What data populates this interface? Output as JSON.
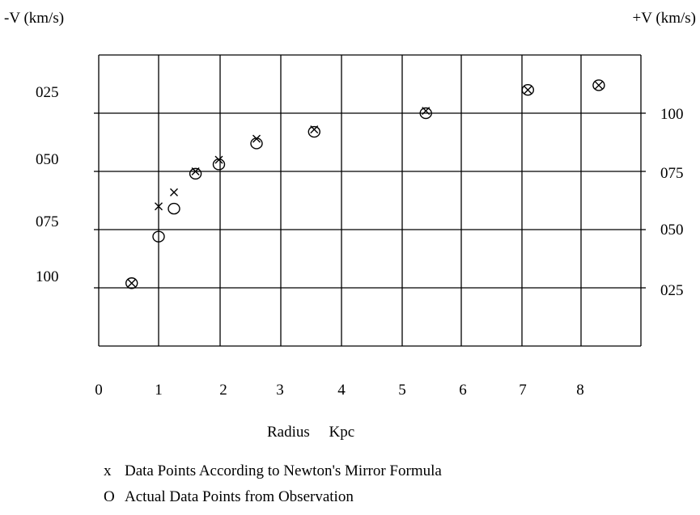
{
  "chart_data": {
    "type": "scatter",
    "xlabel": "Radius     Kpc",
    "left_axis_label": "-V   (km/s)",
    "right_axis_label": "+V (km/s)",
    "x_ticks": [
      "0",
      "1",
      "2",
      "3",
      "4",
      "5",
      "6",
      "7",
      "8"
    ],
    "left_ticks": [
      "025",
      "050",
      "075",
      "100"
    ],
    "right_ticks": [
      "100",
      "075",
      "050",
      "025"
    ],
    "grid": true,
    "series": [
      {
        "name": "Data Points According to Newton's Mirror Formula",
        "marker": "x",
        "points": [
          {
            "x": 0.55,
            "y": 27
          },
          {
            "x": 1.0,
            "y": 60
          },
          {
            "x": 1.25,
            "y": 66
          },
          {
            "x": 1.6,
            "y": 75
          },
          {
            "x": 1.98,
            "y": 80
          },
          {
            "x": 2.6,
            "y": 89
          },
          {
            "x": 3.55,
            "y": 93
          },
          {
            "x": 5.4,
            "y": 101
          },
          {
            "x": 7.1,
            "y": 110
          },
          {
            "x": 8.3,
            "y": 112
          }
        ]
      },
      {
        "name": "Actual Data Points from Observation",
        "marker": "o",
        "points": [
          {
            "x": 0.55,
            "y": 27
          },
          {
            "x": 1.0,
            "y": 47
          },
          {
            "x": 1.25,
            "y": 59
          },
          {
            "x": 1.6,
            "y": 74
          },
          {
            "x": 1.98,
            "y": 78
          },
          {
            "x": 2.6,
            "y": 87
          },
          {
            "x": 3.55,
            "y": 92
          },
          {
            "x": 5.4,
            "y": 100
          },
          {
            "x": 7.1,
            "y": 110
          },
          {
            "x": 8.3,
            "y": 112
          }
        ]
      }
    ],
    "legend": [
      {
        "symbol": "x",
        "text": "Data Points According to Newton's Mirror Formula"
      },
      {
        "symbol": "O",
        "text": "Actual Data Points from Observation"
      }
    ]
  }
}
